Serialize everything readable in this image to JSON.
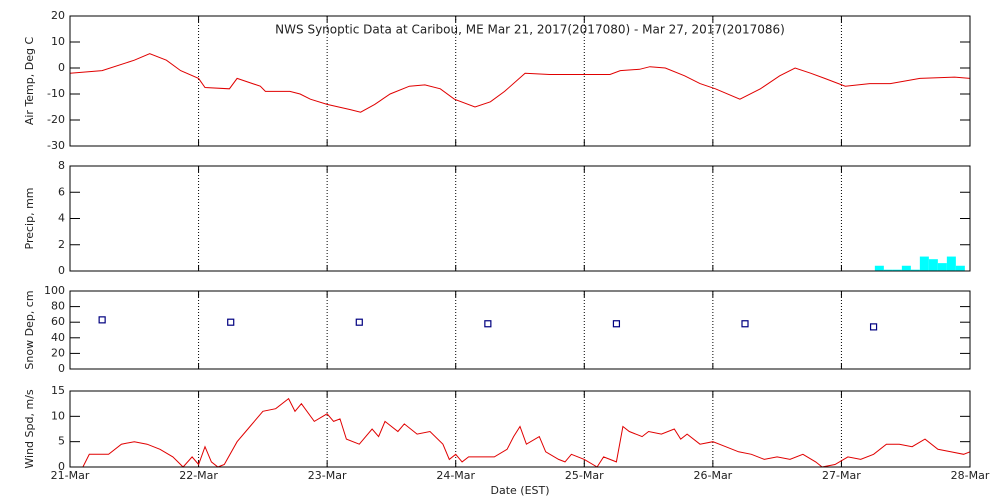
{
  "chart_data": [
    {
      "type": "line",
      "title": "NWS Synoptic Data at Caribou, ME   Mar 21, 2017(2017080) - Mar 27, 2017(2017086)",
      "y_label": "Air Temp, Deg C",
      "color": "#e00000",
      "xlim": [
        0,
        7
      ],
      "ylim": [
        -30,
        20
      ],
      "yticks": [
        -30,
        -20,
        -10,
        0,
        10,
        20
      ],
      "x": [
        0,
        0.25,
        0.5,
        0.62,
        0.75,
        0.86,
        1.0,
        1.05,
        1.24,
        1.3,
        1.48,
        1.52,
        1.71,
        1.79,
        1.87,
        2.0,
        2.18,
        2.26,
        2.37,
        2.49,
        2.64,
        2.76,
        2.88,
        2.99,
        3.15,
        3.27,
        3.38,
        3.54,
        3.73,
        3.97,
        4.2,
        4.28,
        4.43,
        4.51,
        4.63,
        4.78,
        4.9,
        5.02,
        5.21,
        5.37,
        5.52,
        5.64,
        5.76,
        5.87,
        6.03,
        6.22,
        6.38,
        6.61,
        6.88,
        7.0
      ],
      "values": [
        -2,
        -1,
        3,
        5.5,
        3,
        -1,
        -4,
        -7.5,
        -8,
        -4,
        -7,
        -9,
        -9,
        -10,
        -12,
        -14,
        -16,
        -17,
        -14,
        -10,
        -7,
        -6.5,
        -8,
        -12,
        -15,
        -13,
        -9,
        -2,
        -2.5,
        -2.5,
        -2.5,
        -1,
        -0.5,
        0.5,
        0,
        -3,
        -6,
        -8,
        -12,
        -8,
        -3,
        0,
        -2,
        -4,
        -7,
        -6,
        -6,
        -4,
        -3.5,
        -4
      ]
    },
    {
      "type": "histogram",
      "y_label": "Precip, mm",
      "color": "#00ffff",
      "xlim": [
        0,
        7
      ],
      "ylim": [
        0,
        8
      ],
      "yticks": [
        0,
        2,
        4,
        6,
        8
      ],
      "bins": [
        6.26,
        6.33,
        6.4,
        6.47,
        6.54,
        6.61,
        6.68,
        6.75,
        6.82,
        6.89,
        6.96
      ],
      "values": [
        0.4,
        0.1,
        0.1,
        0.4,
        0.1,
        1.1,
        0.9,
        0.6,
        1.1,
        0.4
      ]
    },
    {
      "type": "scatter",
      "y_label": "Snow Dep, cm",
      "color": "#000080",
      "xlim": [
        0,
        7
      ],
      "ylim": [
        0,
        100
      ],
      "yticks": [
        0,
        20,
        40,
        60,
        80,
        100
      ],
      "x": [
        0.25,
        1.25,
        2.25,
        3.25,
        4.25,
        5.25,
        6.25
      ],
      "values": [
        63,
        60,
        60,
        58,
        58,
        58,
        54
      ]
    },
    {
      "type": "line",
      "y_label": "Wind Spd, m/s",
      "x_label": "Date (EST)",
      "color": "#e00000",
      "xlim": [
        0,
        7
      ],
      "ylim": [
        0,
        15
      ],
      "yticks": [
        0,
        5,
        10,
        15
      ],
      "xticks": [
        {
          "value": 0,
          "label": "21-Mar"
        },
        {
          "value": 1,
          "label": "22-Mar"
        },
        {
          "value": 2,
          "label": "23-Mar"
        },
        {
          "value": 3,
          "label": "24-Mar"
        },
        {
          "value": 4,
          "label": "25-Mar"
        },
        {
          "value": 5,
          "label": "26-Mar"
        },
        {
          "value": 6,
          "label": "27-Mar"
        },
        {
          "value": 7,
          "label": "28-Mar"
        }
      ],
      "x": [
        0,
        0.1,
        0.15,
        0.3,
        0.4,
        0.5,
        0.6,
        0.7,
        0.8,
        0.88,
        0.95,
        1.0,
        1.05,
        1.1,
        1.15,
        1.2,
        1.3,
        1.4,
        1.5,
        1.6,
        1.7,
        1.75,
        1.8,
        1.9,
        2.0,
        2.05,
        2.1,
        2.15,
        2.25,
        2.35,
        2.4,
        2.45,
        2.55,
        2.6,
        2.7,
        2.8,
        2.9,
        2.95,
        3.0,
        3.05,
        3.1,
        3.3,
        3.4,
        3.45,
        3.5,
        3.55,
        3.65,
        3.7,
        3.8,
        3.85,
        3.9,
        4.0,
        4.1,
        4.15,
        4.25,
        4.3,
        4.35,
        4.45,
        4.5,
        4.6,
        4.7,
        4.75,
        4.8,
        4.9,
        5.0,
        5.1,
        5.2,
        5.3,
        5.4,
        5.5,
        5.6,
        5.7,
        5.8,
        5.85,
        5.95,
        6.05,
        6.15,
        6.25,
        6.35,
        6.45,
        6.55,
        6.65,
        6.75,
        6.85,
        6.95,
        7.0
      ],
      "values": [
        0,
        0,
        2.5,
        2.5,
        4.5,
        5,
        4.5,
        3.5,
        2,
        0,
        2,
        0.5,
        4,
        1,
        0,
        0.5,
        5,
        8,
        11,
        11.5,
        13.5,
        11,
        12.5,
        9,
        10.5,
        9,
        9.5,
        5.5,
        4.5,
        7.5,
        6,
        9,
        7,
        8.5,
        6.5,
        7,
        4.5,
        1.5,
        2.5,
        1,
        2,
        2,
        3.5,
        6,
        8,
        4.5,
        6,
        3,
        1.5,
        1,
        2.5,
        1.5,
        0,
        2,
        1,
        8,
        7,
        6,
        7,
        6.5,
        7.5,
        5.5,
        6.5,
        4.5,
        5,
        4,
        3,
        2.5,
        1.5,
        2,
        1.5,
        2.5,
        1,
        0,
        0.5,
        2,
        1.5,
        2.5,
        4.5,
        4.5,
        4,
        5.5,
        3.5,
        3,
        2.5,
        3
      ]
    }
  ]
}
